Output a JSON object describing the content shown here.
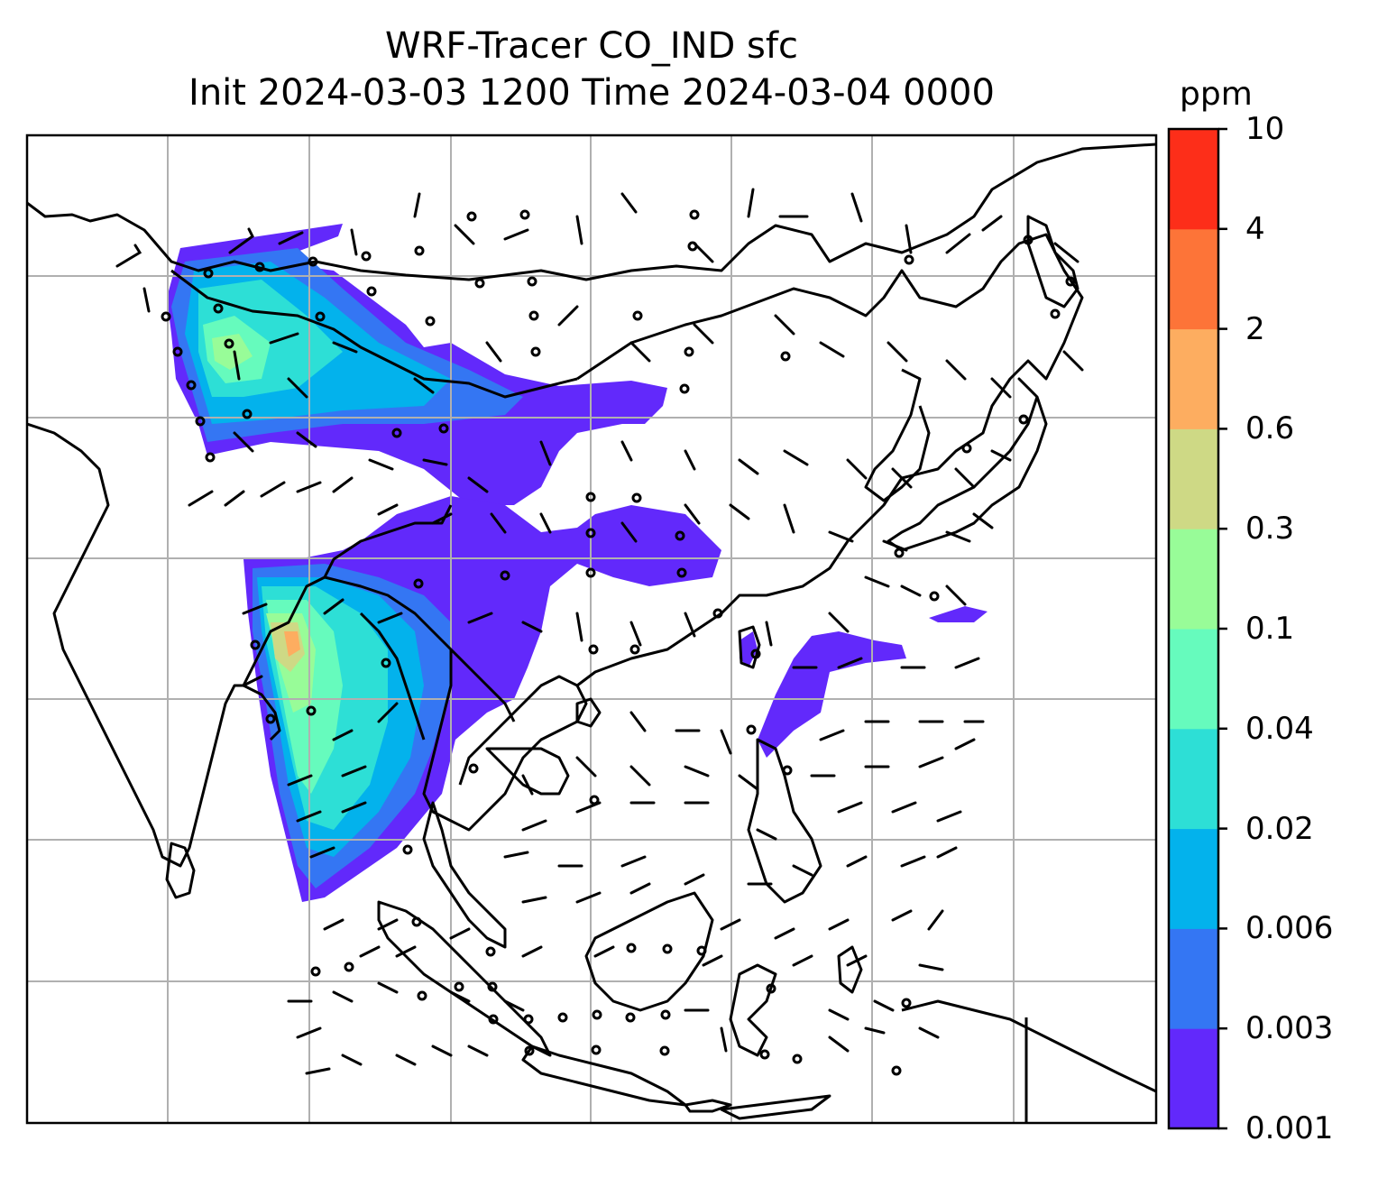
{
  "title": {
    "line1": "WRF-Tracer CO_IND sfc",
    "line2": "Init 2024-03-03 1200 Time 2024-03-04 0000"
  },
  "colorbar": {
    "unit": "ppm",
    "levels": [
      "0.001",
      "0.003",
      "0.006",
      "0.02",
      "0.04",
      "0.1",
      "0.3",
      "0.6",
      "2",
      "4",
      "10"
    ],
    "colors": [
      "#6229fb",
      "#3476f3",
      "#03b2ec",
      "#2ddfd6",
      "#66fbbd",
      "#98fc98",
      "#ced985",
      "#fdad60",
      "#fd7438",
      "#fd2e19"
    ]
  },
  "map": {
    "gridlines": true,
    "coastline_color": "#000000",
    "barbs": "wind-barbs"
  }
}
